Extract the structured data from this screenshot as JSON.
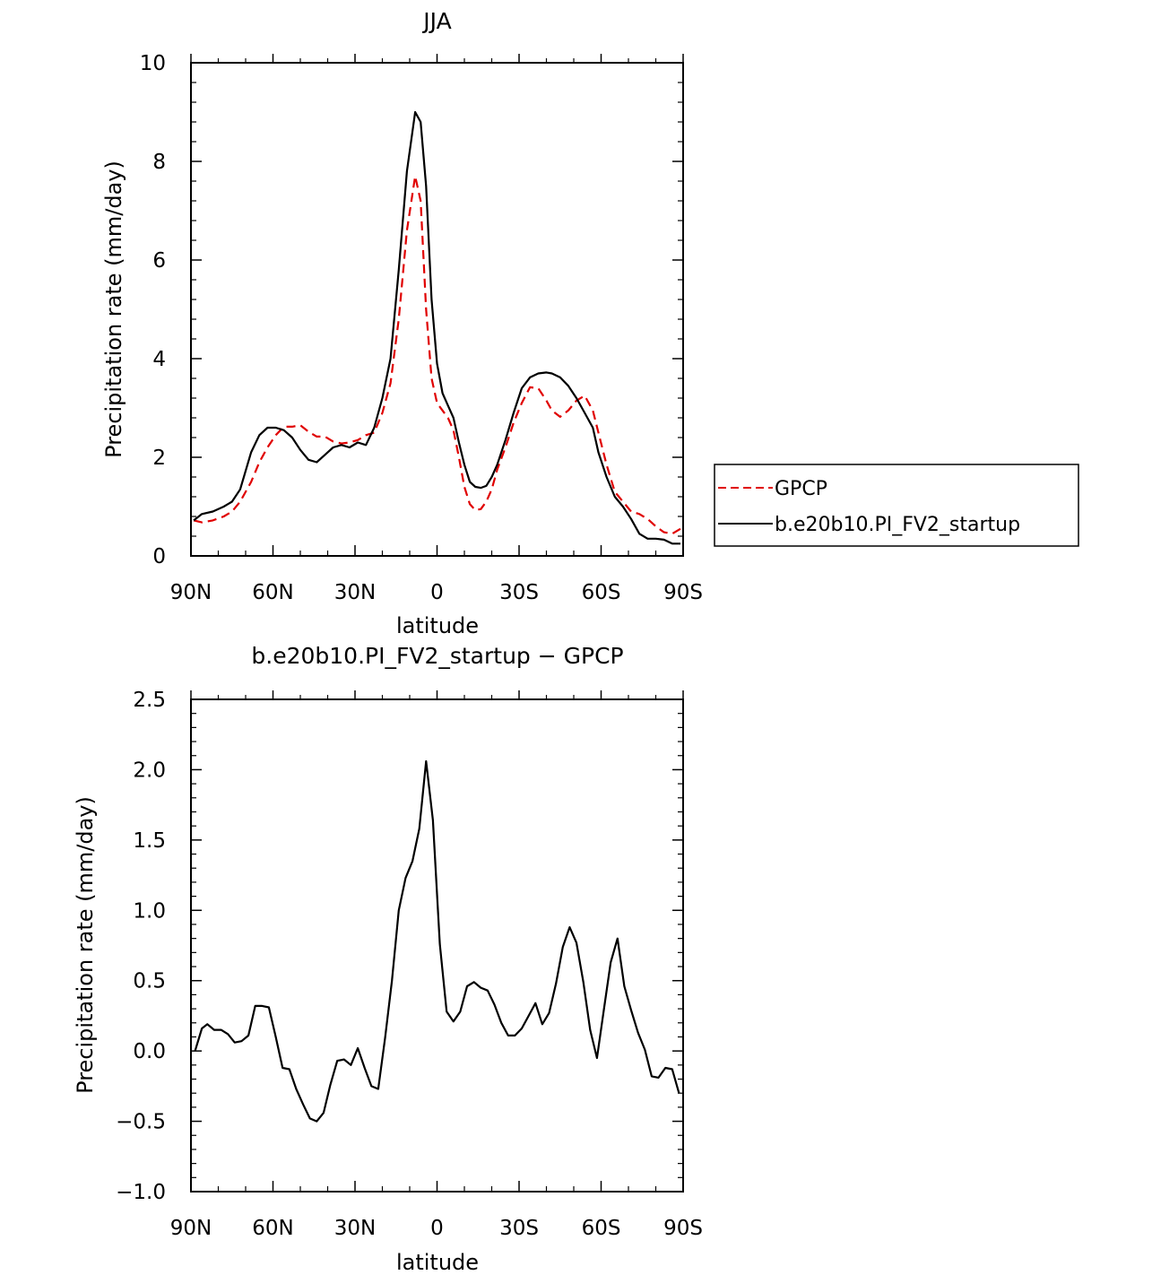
{
  "chart_data": [
    {
      "type": "line",
      "title": "JJA",
      "xlabel": "latitude",
      "ylabel": "Precipitation rate (mm/day)",
      "xlim": [
        90,
        -90
      ],
      "ylim": [
        0,
        10
      ],
      "x_ticks": [
        90,
        60,
        30,
        0,
        -30,
        -60,
        -90
      ],
      "x_tick_labels": [
        "90N",
        "60N",
        "30N",
        "0",
        "30S",
        "60S",
        "90S"
      ],
      "y_ticks": [
        0,
        2,
        4,
        6,
        8,
        10
      ],
      "y_tick_labels": [
        "0",
        "2",
        "4",
        "6",
        "8",
        "10"
      ],
      "legend": {
        "placement": "right",
        "entries": [
          "GPCP",
          "b.e20b10.PI_FV2_startup"
        ]
      },
      "series": [
        {
          "name": "GPCP",
          "color": "#e00000",
          "style": "dashed",
          "x": [
            89,
            86,
            82,
            78,
            75,
            72,
            68,
            65,
            62,
            59,
            56,
            53,
            50,
            47,
            44,
            41,
            38,
            35,
            32,
            29,
            26,
            23,
            20,
            17,
            14,
            11,
            8,
            6,
            4,
            2,
            0,
            -2,
            -4,
            -6,
            -8,
            -10,
            -12,
            -14,
            -16,
            -18,
            -20,
            -22,
            -25,
            -28,
            -31,
            -34,
            -37,
            -40,
            -42,
            -45,
            -48,
            -51,
            -54,
            -57,
            -59,
            -62,
            -65,
            -68,
            -71,
            -74,
            -77,
            -80,
            -83,
            -86,
            -89
          ],
          "y": [
            0.72,
            0.68,
            0.72,
            0.8,
            0.9,
            1.1,
            1.5,
            1.9,
            2.2,
            2.45,
            2.62,
            2.62,
            2.65,
            2.52,
            2.42,
            2.42,
            2.32,
            2.28,
            2.3,
            2.35,
            2.45,
            2.5,
            2.9,
            3.5,
            4.8,
            6.6,
            7.7,
            7.2,
            5.0,
            3.6,
            3.1,
            2.95,
            2.8,
            2.55,
            2.0,
            1.4,
            1.05,
            0.93,
            0.95,
            1.1,
            1.35,
            1.75,
            2.2,
            2.7,
            3.1,
            3.42,
            3.4,
            3.15,
            2.95,
            2.82,
            2.95,
            3.15,
            3.25,
            2.95,
            2.5,
            1.85,
            1.3,
            1.1,
            0.9,
            0.85,
            0.75,
            0.6,
            0.48,
            0.45,
            0.55
          ]
        },
        {
          "name": "b.e20b10.PI_FV2_startup",
          "color": "#000000",
          "style": "solid",
          "x": [
            89,
            86,
            82,
            78,
            75,
            72,
            68,
            65,
            62,
            59,
            56,
            53,
            50,
            47,
            44,
            41,
            38,
            35,
            32,
            29,
            26,
            23,
            20,
            17,
            14,
            11,
            8,
            6,
            4,
            2,
            0,
            -2,
            -4,
            -6,
            -8,
            -10,
            -12,
            -14,
            -16,
            -18,
            -20,
            -22,
            -25,
            -28,
            -31,
            -34,
            -37,
            -40,
            -42,
            -45,
            -48,
            -51,
            -54,
            -57,
            -59,
            -62,
            -65,
            -68,
            -71,
            -74,
            -77,
            -80,
            -83,
            -86,
            -89
          ],
          "y": [
            0.72,
            0.85,
            0.9,
            1.0,
            1.1,
            1.35,
            2.1,
            2.45,
            2.6,
            2.6,
            2.55,
            2.4,
            2.15,
            1.95,
            1.9,
            2.05,
            2.2,
            2.25,
            2.2,
            2.3,
            2.25,
            2.6,
            3.2,
            4.0,
            5.8,
            7.8,
            9.0,
            8.8,
            7.5,
            5.2,
            3.9,
            3.3,
            3.05,
            2.8,
            2.3,
            1.85,
            1.5,
            1.4,
            1.38,
            1.42,
            1.6,
            1.85,
            2.35,
            2.9,
            3.4,
            3.62,
            3.7,
            3.72,
            3.7,
            3.62,
            3.45,
            3.2,
            2.9,
            2.6,
            2.1,
            1.6,
            1.2,
            1.0,
            0.75,
            0.45,
            0.35,
            0.35,
            0.33,
            0.25,
            0.25
          ]
        }
      ]
    },
    {
      "type": "line",
      "title": "b.e20b10.PI_FV2_startup − GPCP",
      "xlabel": "latitude",
      "ylabel": "Precipitation rate (mm/day)",
      "xlim": [
        90,
        -90
      ],
      "ylim": [
        -1.0,
        2.5
      ],
      "x_ticks": [
        90,
        60,
        30,
        0,
        -30,
        -60,
        -90
      ],
      "x_tick_labels": [
        "90N",
        "60N",
        "30N",
        "0",
        "30S",
        "60S",
        "90S"
      ],
      "y_ticks": [
        -1.0,
        -0.5,
        0.0,
        0.5,
        1.0,
        1.5,
        2.0,
        2.5
      ],
      "y_tick_labels": [
        "−1.0",
        "−0.5",
        "0.0",
        "0.5",
        "1.0",
        "1.5",
        "2.0",
        "2.5"
      ],
      "series": [
        {
          "color": "#000000",
          "style": "solid",
          "x": [
            88.5,
            86,
            84,
            81.5,
            79,
            76.5,
            74,
            71.5,
            69,
            66.5,
            64,
            61.5,
            59,
            56.5,
            54,
            51.5,
            49,
            46.5,
            44,
            41.5,
            39,
            36.5,
            34,
            31.5,
            29,
            26.5,
            24,
            21.5,
            19,
            16.5,
            14,
            11.5,
            9,
            6.5,
            4,
            1.5,
            -1,
            -3.5,
            -6,
            -8.5,
            -11,
            -13.5,
            -16,
            -18.5,
            -21,
            -23.5,
            -26,
            -28.5,
            -31,
            -33.5,
            -36,
            -38.5,
            -41,
            -43.5,
            -46,
            -48.5,
            -51,
            -53.5,
            -56,
            -58.5,
            -61,
            -63.5,
            -66,
            -68.5,
            -71,
            -73.5,
            -76,
            -78.5,
            -81,
            -83.5,
            -86,
            -88.5
          ],
          "y": [
            0.0,
            0.16,
            0.19,
            0.15,
            0.15,
            0.12,
            0.06,
            0.07,
            0.11,
            0.32,
            0.32,
            0.31,
            0.1,
            -0.12,
            -0.13,
            -0.27,
            -0.38,
            -0.48,
            -0.5,
            -0.44,
            -0.24,
            -0.07,
            -0.06,
            -0.1,
            0.02,
            -0.12,
            -0.25,
            -0.27,
            0.09,
            0.5,
            1.0,
            1.23,
            1.35,
            1.58,
            2.06,
            1.64,
            0.76,
            0.28,
            0.21,
            0.28,
            0.46,
            0.49,
            0.45,
            0.43,
            0.33,
            0.2,
            0.11,
            0.11,
            0.16,
            0.25,
            0.34,
            0.19,
            0.27,
            0.48,
            0.74,
            0.88,
            0.77,
            0.49,
            0.15,
            -0.05,
            0.29,
            0.63,
            0.8,
            0.46,
            0.29,
            0.13,
            0.01,
            -0.18,
            -0.19,
            -0.12,
            -0.13,
            -0.3
          ]
        }
      ]
    }
  ]
}
